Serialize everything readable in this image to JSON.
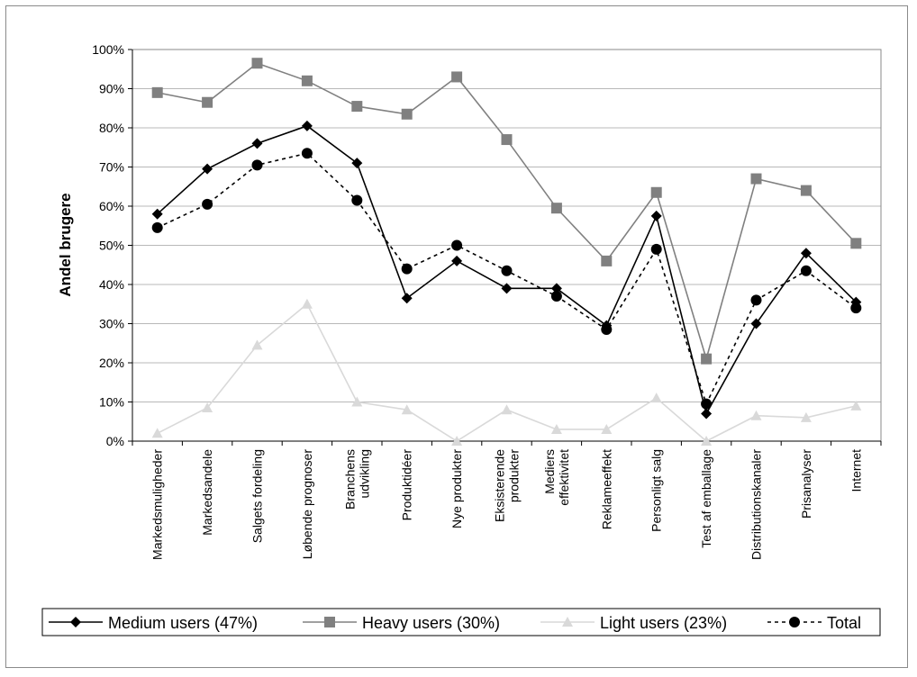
{
  "chart_data": {
    "type": "line",
    "ylabel": "Andel brugere",
    "xlabel": "",
    "ylim": [
      0,
      100
    ],
    "y_tick_labels": [
      "0%",
      "10%",
      "20%",
      "30%",
      "40%",
      "50%",
      "60%",
      "70%",
      "80%",
      "90%",
      "100%"
    ],
    "grid": "horizontal",
    "legend_position": "bottom",
    "categories": [
      "Markedsmuligheder",
      "Markedsandele",
      "Salgets fordeling",
      "Løbende prognoser",
      "Branchens udvikling",
      "Produktidéer",
      "Nye produkter",
      "Eksisterende produkter",
      "Mediers effektivitet",
      "Reklameeffekt",
      "Personligt salg",
      "Test af emballage",
      "Distributionskanaler",
      "Prisanalyser",
      "Internet"
    ],
    "series": [
      {
        "name": "Medium users (47%)",
        "marker": "diamond",
        "color": "#000000",
        "dash": "solid",
        "values": [
          58,
          69.5,
          76,
          80.5,
          71,
          36.5,
          46,
          39,
          39,
          29.5,
          57.5,
          7,
          30,
          48,
          35.5
        ]
      },
      {
        "name": "Heavy users (30%)",
        "marker": "square",
        "color": "#808080",
        "dash": "solid",
        "values": [
          89,
          86.5,
          96.5,
          92,
          85.5,
          83.5,
          93,
          77,
          59.5,
          46,
          63.5,
          21,
          67,
          64,
          50.5
        ]
      },
      {
        "name": "Light users (23%)",
        "marker": "triangle",
        "color": "#d9d9d9",
        "dash": "solid",
        "values": [
          2,
          8.5,
          24.5,
          35,
          10,
          8,
          0,
          8,
          3,
          3,
          11,
          0,
          6.5,
          6,
          9
        ]
      },
      {
        "name": "Total",
        "marker": "circle",
        "color": "#000000",
        "dash": "dotted",
        "values": [
          54.5,
          60.5,
          70.5,
          73.5,
          61.5,
          44,
          50,
          43.5,
          37,
          28.5,
          49,
          9.5,
          36,
          43.5,
          34
        ]
      }
    ]
  }
}
